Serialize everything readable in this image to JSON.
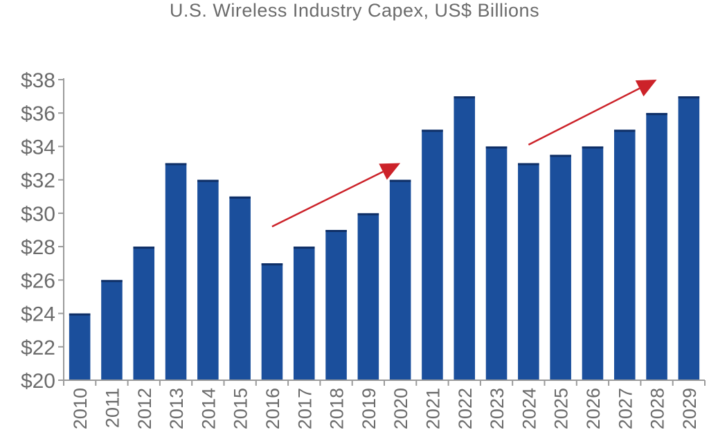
{
  "chart_data": {
    "type": "bar",
    "title": "U.S. Wireless Industry Capex, US$ Billions",
    "xlabel": "",
    "ylabel": "",
    "categories": [
      "2010",
      "2011",
      "2012",
      "2013",
      "2014",
      "2015",
      "2016",
      "2017",
      "2018",
      "2019",
      "2020",
      "2021",
      "2022",
      "2023",
      "2024",
      "2025",
      "2026",
      "2027",
      "2028",
      "2029"
    ],
    "values": [
      24,
      26,
      28,
      33,
      32,
      31,
      27,
      28,
      29,
      30,
      32,
      35,
      37,
      34,
      33,
      33.5,
      34,
      35,
      36,
      37
    ],
    "ylim": [
      20,
      38
    ],
    "yticks": [
      "$20",
      "$22",
      "$24",
      "$26",
      "$28",
      "$30",
      "$32",
      "$34",
      "$36",
      "$38"
    ],
    "ytick_values": [
      20,
      22,
      24,
      26,
      28,
      30,
      32,
      34,
      36,
      38
    ],
    "grid": false,
    "colors": {
      "bar": "#1b4f9c",
      "bar_top": "#0f2f66",
      "arrow": "#cc2229",
      "axis": "#9a9a9a",
      "text": "#6b6b6b"
    },
    "annotations": [
      {
        "type": "arrow",
        "from": {
          "x": "2016",
          "y": 29.2
        },
        "to": {
          "x": "2020",
          "y": 33.0
        }
      },
      {
        "type": "arrow",
        "from": {
          "x": "2024",
          "y": 34.1
        },
        "to": {
          "x": "2028",
          "y": 38.0
        }
      }
    ]
  }
}
